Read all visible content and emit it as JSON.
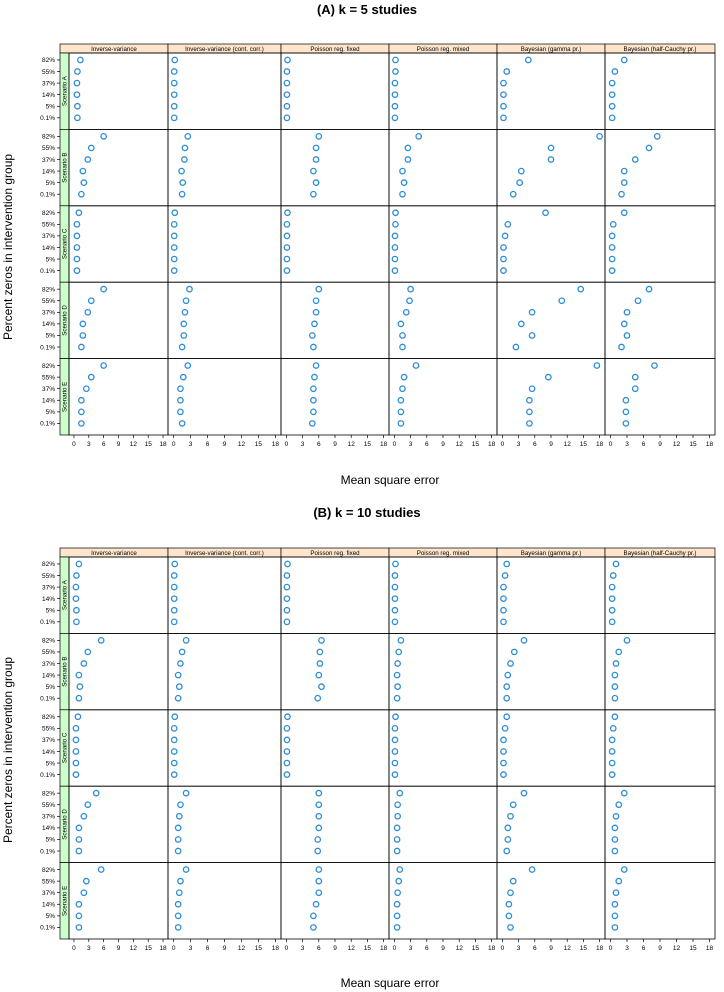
{
  "colors": {
    "point": "#2b8cd6",
    "strip_top": "#ffe5cc",
    "strip_side": "#ccffcc",
    "frame": "#000000"
  },
  "methods": [
    "Inverse-variance",
    "Inverse-variance (cont. corr.)",
    "Poisson reg. fixed",
    "Poisson reg. mixed",
    "Bayesian (gamma pr.)",
    "Bayesian (half-Cauchy pr.)"
  ],
  "scenarios": [
    "Scenario A",
    "Scenario B",
    "Scenario C",
    "Scenario D",
    "Scenario E"
  ],
  "y_levels": [
    "0.1%",
    "5%",
    "14%",
    "37%",
    "55%",
    "82%"
  ],
  "x_ticks": [
    0,
    3,
    6,
    9,
    12,
    15,
    18
  ],
  "y_axis_label": "Percent zeros in intervention group",
  "x_axis_label": "Mean square error",
  "chart_data": [
    {
      "type": "scatter",
      "title": "(A) k = 5 studies",
      "xlabel": "Mean square error",
      "ylabel": "Percent zeros in intervention group",
      "xlim": [
        -1,
        19
      ],
      "note": "values[method][scenario] = MSE for y_levels 0.1%,5%,14%,37%,55%,82%",
      "values": [
        [
          [
            0.7,
            0.7,
            0.6,
            0.6,
            0.7,
            1.3
          ],
          [
            1.5,
            2.0,
            1.8,
            2.8,
            3.5,
            6.0
          ],
          [
            0.6,
            0.6,
            0.6,
            0.6,
            0.6,
            1.0
          ],
          [
            1.5,
            1.8,
            1.8,
            2.8,
            3.5,
            6.0
          ],
          [
            1.5,
            1.5,
            1.5,
            2.5,
            3.5,
            6.0
          ]
        ],
        [
          [
            0.1,
            0.1,
            0.1,
            0.1,
            0.1,
            0.2
          ],
          [
            1.5,
            1.6,
            1.4,
            1.9,
            2.0,
            2.5
          ],
          [
            0.1,
            0.1,
            0.1,
            0.1,
            0.1,
            0.2
          ],
          [
            1.5,
            1.8,
            1.8,
            2.0,
            2.2,
            2.8
          ],
          [
            1.5,
            1.2,
            1.2,
            1.2,
            1.7,
            2.5
          ]
        ],
        [
          [
            0.1,
            0.1,
            0.1,
            0.1,
            0.1,
            0.2
          ],
          [
            5.0,
            5.5,
            5.0,
            5.5,
            5.5,
            6.0
          ],
          [
            0.1,
            0.1,
            0.1,
            0.1,
            0.1,
            0.2
          ],
          [
            5.0,
            4.8,
            5.2,
            5.5,
            5.5,
            6.0
          ],
          [
            4.8,
            5.0,
            5.0,
            5.0,
            5.2,
            5.5
          ]
        ],
        [
          [
            0.1,
            0.1,
            0.1,
            0.1,
            0.2,
            0.2
          ],
          [
            1.5,
            1.8,
            1.5,
            2.5,
            2.5,
            4.5
          ],
          [
            0.1,
            0.1,
            0.1,
            0.1,
            0.2,
            0.2
          ],
          [
            1.5,
            1.5,
            1.2,
            2.2,
            2.8,
            3.0
          ],
          [
            1.2,
            1.2,
            1.2,
            1.5,
            1.8,
            4.0
          ]
        ],
        [
          [
            0.2,
            0.2,
            0.2,
            0.2,
            0.8,
            4.8
          ],
          [
            2.0,
            3.2,
            3.5,
            9.0,
            9.0,
            18.0
          ],
          [
            0.2,
            0.2,
            0.2,
            0.5,
            1.0,
            8.0
          ],
          [
            2.5,
            5.5,
            3.5,
            5.5,
            11.0,
            14.5
          ],
          [
            5.0,
            5.0,
            5.0,
            5.5,
            8.5,
            17.5
          ]
        ],
        [
          [
            0.3,
            0.3,
            0.3,
            0.3,
            0.8,
            2.5
          ],
          [
            2.0,
            2.5,
            2.5,
            4.5,
            7.0,
            8.5
          ],
          [
            0.3,
            0.3,
            0.3,
            0.3,
            0.5,
            2.5
          ],
          [
            2.0,
            3.0,
            2.5,
            3.0,
            5.0,
            7.0
          ],
          [
            2.8,
            2.8,
            2.8,
            4.5,
            4.5,
            8.0
          ]
        ]
      ]
    },
    {
      "type": "scatter",
      "title": "(B) k = 10 studies",
      "xlabel": "Mean square error",
      "ylabel": "Percent zeros in intervention group",
      "xlim": [
        -1,
        19
      ],
      "note": "values[method][scenario] = MSE for y_levels 0.1%,5%,14%,37%,55%,82%",
      "values": [
        [
          [
            0.5,
            0.5,
            0.4,
            0.4,
            0.5,
            1.0
          ],
          [
            1.0,
            1.2,
            1.0,
            2.0,
            2.8,
            5.5
          ],
          [
            0.4,
            0.4,
            0.4,
            0.4,
            0.4,
            0.8
          ],
          [
            1.0,
            1.0,
            1.0,
            2.0,
            2.8,
            4.5
          ],
          [
            1.0,
            1.0,
            1.0,
            2.0,
            2.5,
            5.5
          ]
        ],
        [
          [
            0.1,
            0.1,
            0.1,
            0.1,
            0.1,
            0.2
          ],
          [
            0.8,
            1.0,
            0.8,
            1.2,
            1.5,
            2.2
          ],
          [
            0.1,
            0.1,
            0.1,
            0.1,
            0.1,
            0.2
          ],
          [
            0.8,
            0.8,
            0.8,
            1.0,
            1.2,
            2.2
          ],
          [
            0.8,
            0.8,
            0.8,
            1.0,
            1.2,
            2.2
          ]
        ],
        [
          [
            0.1,
            0.1,
            0.1,
            0.1,
            0.1,
            0.2
          ],
          [
            5.8,
            6.5,
            6.0,
            6.2,
            6.2,
            6.5
          ],
          [
            0.1,
            0.1,
            0.1,
            0.1,
            0.1,
            0.2
          ],
          [
            5.8,
            5.8,
            6.0,
            6.0,
            6.0,
            6.0
          ],
          [
            5.0,
            5.0,
            5.5,
            6.0,
            6.0,
            6.0
          ]
        ],
        [
          [
            0.1,
            0.1,
            0.1,
            0.1,
            0.1,
            0.2
          ],
          [
            0.5,
            0.6,
            0.5,
            0.6,
            0.8,
            1.2
          ],
          [
            0.1,
            0.1,
            0.1,
            0.1,
            0.1,
            0.2
          ],
          [
            0.5,
            0.5,
            0.5,
            0.6,
            0.6,
            1.0
          ],
          [
            0.5,
            0.5,
            0.5,
            0.6,
            0.8,
            1.0
          ]
        ],
        [
          [
            0.2,
            0.2,
            0.2,
            0.2,
            0.5,
            0.8
          ],
          [
            0.8,
            0.8,
            1.0,
            1.5,
            2.2,
            4.0
          ],
          [
            0.2,
            0.2,
            0.2,
            0.2,
            0.5,
            0.8
          ],
          [
            0.8,
            1.0,
            1.0,
            1.5,
            2.0,
            4.0
          ],
          [
            1.5,
            1.2,
            1.2,
            1.5,
            2.0,
            5.5
          ]
        ],
        [
          [
            0.3,
            0.3,
            0.3,
            0.3,
            0.5,
            1.0
          ],
          [
            0.8,
            0.8,
            0.8,
            1.0,
            1.5,
            3.0
          ],
          [
            0.3,
            0.3,
            0.3,
            0.3,
            0.5,
            0.8
          ],
          [
            0.8,
            0.8,
            0.8,
            1.0,
            1.5,
            2.5
          ],
          [
            0.8,
            0.8,
            0.8,
            1.0,
            1.5,
            2.5
          ]
        ]
      ]
    }
  ]
}
